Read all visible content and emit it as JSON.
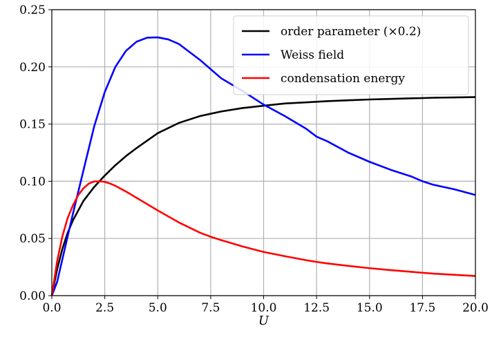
{
  "chart_data": {
    "type": "line",
    "xlabel": "U",
    "ylabel": "",
    "title": "",
    "xlim": [
      0,
      20
    ],
    "ylim": [
      0,
      0.25
    ],
    "x_ticks": [
      "0.0",
      "2.5",
      "5.0",
      "7.5",
      "10.0",
      "12.5",
      "15.0",
      "17.5",
      "20.0"
    ],
    "y_ticks": [
      "0.00",
      "0.05",
      "0.10",
      "0.15",
      "0.20",
      "0.25"
    ],
    "grid": true,
    "legend_position": "top-right",
    "series": [
      {
        "name": "order parameter (×0.2)",
        "color": "#000000",
        "x": [
          0,
          0.25,
          0.5,
          0.75,
          1,
          1.5,
          2,
          2.5,
          3,
          3.5,
          4,
          5,
          6,
          7,
          7.5,
          8,
          9,
          10,
          11,
          12,
          12.5,
          13,
          14,
          15,
          16,
          17,
          17.5,
          18,
          19,
          20
        ],
        "y": [
          0,
          0.023,
          0.041,
          0.055,
          0.066,
          0.083,
          0.095,
          0.105,
          0.114,
          0.122,
          0.129,
          0.142,
          0.151,
          0.157,
          0.159,
          0.161,
          0.164,
          0.166,
          0.168,
          0.169,
          0.1695,
          0.17,
          0.1708,
          0.1715,
          0.172,
          0.1725,
          0.1727,
          0.173,
          0.1733,
          0.1736
        ]
      },
      {
        "name": "Weiss field",
        "color": "#0000ff",
        "x": [
          0,
          0.25,
          0.5,
          0.75,
          1,
          1.5,
          2,
          2.5,
          3,
          3.5,
          4,
          4.5,
          5,
          5.5,
          6,
          7,
          7.5,
          8,
          9,
          10,
          11,
          12,
          12.5,
          13,
          14,
          15,
          16,
          17,
          17.5,
          18,
          19,
          20
        ],
        "y": [
          0,
          0.012,
          0.032,
          0.052,
          0.072,
          0.11,
          0.148,
          0.178,
          0.2,
          0.214,
          0.222,
          0.2255,
          0.2258,
          0.224,
          0.22,
          0.206,
          0.198,
          0.19,
          0.179,
          0.167,
          0.157,
          0.146,
          0.139,
          0.135,
          0.125,
          0.117,
          0.11,
          0.104,
          0.1,
          0.097,
          0.093,
          0.088
        ]
      },
      {
        "name": "condensation energy",
        "color": "#ff0000",
        "x": [
          0,
          0.25,
          0.5,
          0.75,
          1,
          1.25,
          1.5,
          1.75,
          2,
          2.25,
          2.5,
          2.75,
          3,
          3.5,
          4,
          4.5,
          5,
          6,
          7,
          7.5,
          8,
          9,
          10,
          11,
          12,
          12.5,
          13,
          14,
          15,
          16,
          17,
          17.5,
          18,
          19,
          20
        ],
        "y": [
          0,
          0.03,
          0.052,
          0.068,
          0.079,
          0.088,
          0.094,
          0.098,
          0.0998,
          0.1,
          0.0995,
          0.098,
          0.096,
          0.091,
          0.0855,
          0.08,
          0.0745,
          0.064,
          0.055,
          0.0515,
          0.0485,
          0.043,
          0.0382,
          0.0345,
          0.031,
          0.0295,
          0.0282,
          0.026,
          0.024,
          0.0223,
          0.0208,
          0.02,
          0.0193,
          0.0182,
          0.0172
        ]
      }
    ]
  }
}
